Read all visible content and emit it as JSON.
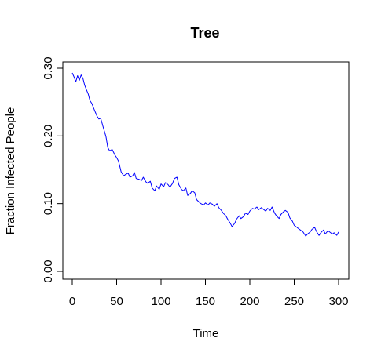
{
  "chart_data": {
    "type": "line",
    "title": "Tree",
    "xlabel": "Time",
    "ylabel": "Fraction Infected People",
    "xlim": [
      0,
      300
    ],
    "ylim": [
      0,
      0.3
    ],
    "x_ticks": [
      0,
      50,
      100,
      150,
      200,
      250,
      300
    ],
    "x_tick_labels": [
      "0",
      "50",
      "100",
      "150",
      "200",
      "250",
      "300"
    ],
    "y_ticks": [
      0,
      0.1,
      0.2,
      0.3
    ],
    "y_tick_labels": [
      "0.00",
      "0.10",
      "0.20",
      "0.30"
    ],
    "grid": false,
    "box": true,
    "series": [
      {
        "color": "#0000ff",
        "x": [
          0,
          2,
          4,
          6,
          8,
          10,
          12,
          14,
          16,
          18,
          20,
          22,
          25,
          28,
          30,
          32,
          35,
          38,
          40,
          42,
          45,
          48,
          50,
          52,
          55,
          58,
          60,
          63,
          65,
          68,
          70,
          72,
          75,
          78,
          80,
          83,
          85,
          88,
          90,
          93,
          95,
          98,
          100,
          103,
          105,
          108,
          110,
          113,
          115,
          118,
          120,
          123,
          125,
          128,
          130,
          133,
          135,
          138,
          140,
          143,
          145,
          148,
          150,
          153,
          155,
          158,
          160,
          163,
          165,
          168,
          170,
          173,
          175,
          178,
          180,
          183,
          185,
          188,
          190,
          193,
          195,
          198,
          200,
          203,
          205,
          208,
          210,
          213,
          215,
          218,
          220,
          223,
          225,
          228,
          230,
          233,
          235,
          238,
          240,
          243,
          245,
          248,
          250,
          253,
          255,
          258,
          260,
          263,
          265,
          268,
          270,
          273,
          275,
          278,
          280,
          283,
          285,
          288,
          290,
          293,
          295,
          298,
          300
        ],
        "y": [
          0.293,
          0.287,
          0.28,
          0.289,
          0.282,
          0.29,
          0.285,
          0.275,
          0.268,
          0.262,
          0.252,
          0.248,
          0.238,
          0.229,
          0.225,
          0.226,
          0.212,
          0.199,
          0.183,
          0.178,
          0.18,
          0.172,
          0.168,
          0.163,
          0.147,
          0.141,
          0.143,
          0.145,
          0.139,
          0.141,
          0.146,
          0.137,
          0.136,
          0.134,
          0.139,
          0.132,
          0.13,
          0.133,
          0.123,
          0.119,
          0.126,
          0.121,
          0.129,
          0.125,
          0.131,
          0.128,
          0.124,
          0.13,
          0.137,
          0.139,
          0.128,
          0.121,
          0.119,
          0.123,
          0.112,
          0.115,
          0.119,
          0.116,
          0.106,
          0.102,
          0.1,
          0.098,
          0.101,
          0.098,
          0.101,
          0.099,
          0.096,
          0.1,
          0.094,
          0.09,
          0.086,
          0.082,
          0.077,
          0.071,
          0.066,
          0.071,
          0.077,
          0.082,
          0.078,
          0.081,
          0.086,
          0.084,
          0.089,
          0.093,
          0.092,
          0.095,
          0.091,
          0.094,
          0.092,
          0.089,
          0.093,
          0.09,
          0.095,
          0.086,
          0.082,
          0.078,
          0.084,
          0.088,
          0.09,
          0.087,
          0.079,
          0.074,
          0.068,
          0.065,
          0.063,
          0.06,
          0.058,
          0.052,
          0.055,
          0.058,
          0.062,
          0.065,
          0.059,
          0.053,
          0.057,
          0.061,
          0.055,
          0.06,
          0.058,
          0.055,
          0.057,
          0.053,
          0.058
        ]
      }
    ]
  }
}
